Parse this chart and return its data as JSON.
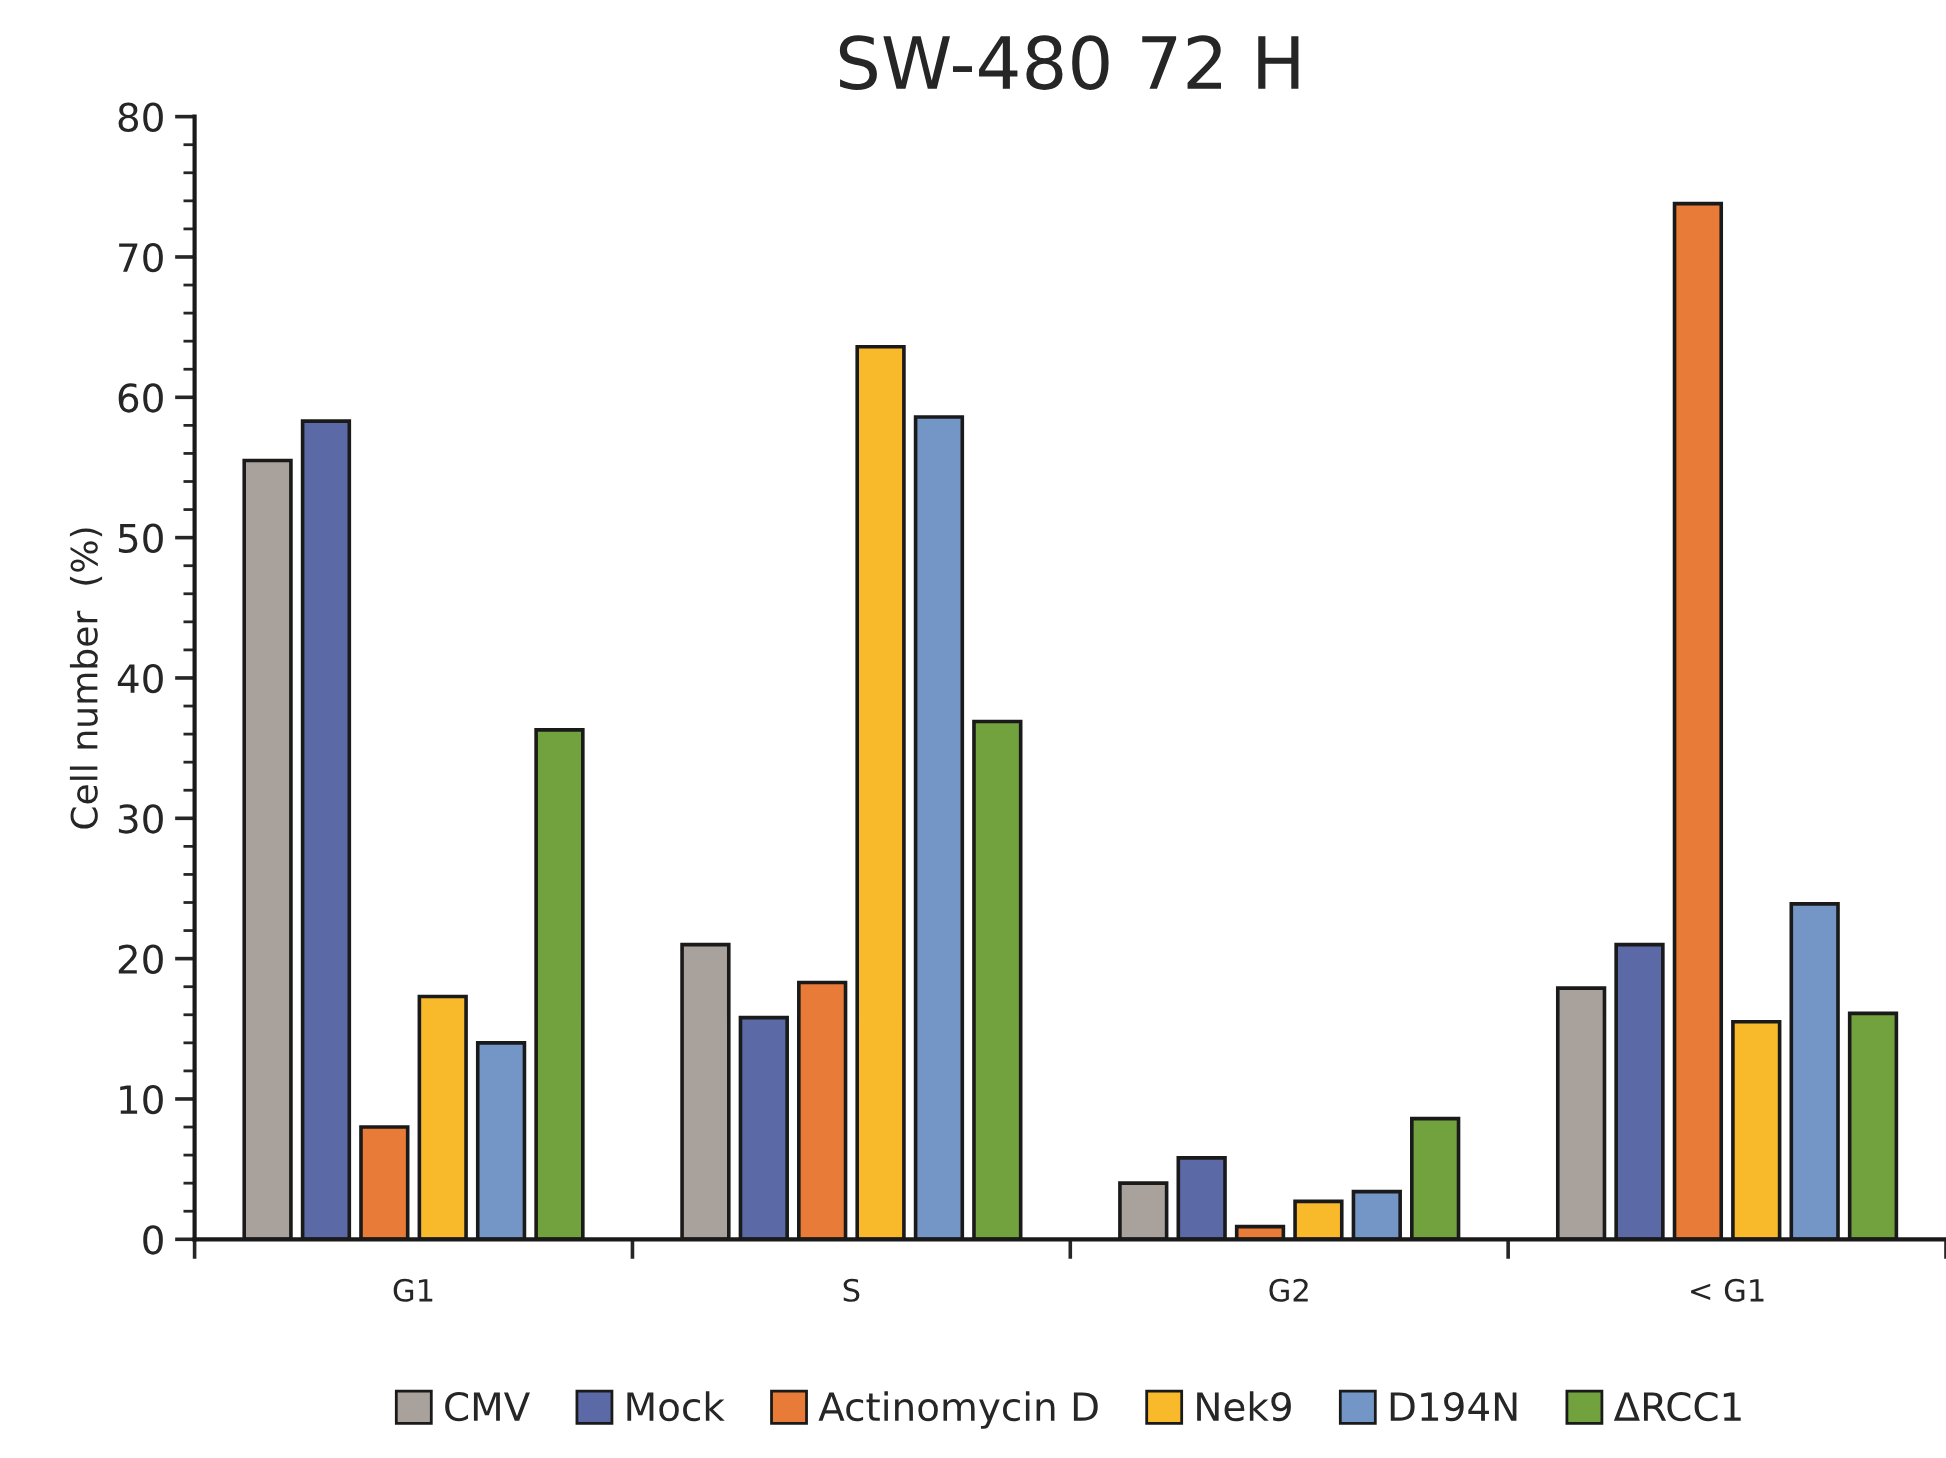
{
  "chart_data": {
    "type": "bar",
    "title": "SW-480 72 H",
    "ylabel": "Cell number  (%)",
    "categories": [
      "G1",
      "S",
      "G2",
      "< G1"
    ],
    "series": [
      {
        "name": "CMV",
        "color": "#a9a19b",
        "values": [
          55.5,
          21.0,
          4.0,
          17.9
        ]
      },
      {
        "name": "Mock",
        "color": "#5b6aa6",
        "values": [
          58.3,
          15.8,
          5.8,
          21.0
        ]
      },
      {
        "name": "Actinomycin D",
        "color": "#e77b37",
        "values": [
          8.0,
          18.3,
          0.9,
          73.8
        ]
      },
      {
        "name": "Nek9",
        "color": "#f8b92a",
        "values": [
          17.3,
          63.6,
          2.7,
          15.5
        ]
      },
      {
        "name": "D194N",
        "color": "#7496c6",
        "values": [
          14.0,
          58.6,
          3.4,
          23.9
        ]
      },
      {
        "name": "ΔRCC1",
        "color": "#72a23e",
        "values": [
          36.3,
          36.9,
          8.6,
          16.1
        ]
      }
    ],
    "ylim": [
      0,
      80
    ],
    "yticks": [
      0,
      10,
      20,
      30,
      40,
      50,
      60,
      70,
      80
    ],
    "grid": false,
    "legend": "bottom"
  }
}
